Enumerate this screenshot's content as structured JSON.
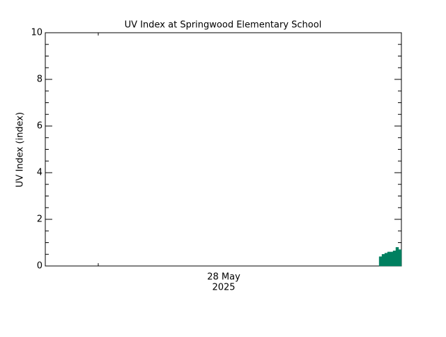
{
  "chart_data": {
    "type": "area",
    "title": "UV Index at Springwood Elementary School",
    "y_label": "UV Index (index)",
    "x_label_lines": [
      "28 May",
      "2025"
    ],
    "color": "#008060",
    "ylim": [
      0,
      10
    ],
    "yticks": [
      0,
      2,
      4,
      6,
      8,
      10
    ],
    "yminor_step": 0.5,
    "values": [
      null,
      null,
      null,
      null,
      null,
      null,
      null,
      null,
      null,
      null,
      null,
      null,
      null,
      null,
      null,
      null,
      null,
      null,
      null,
      null,
      null,
      null,
      null,
      null,
      null,
      null,
      null,
      null,
      null,
      null,
      null,
      null,
      null,
      null,
      null,
      null,
      null,
      null,
      null,
      null,
      null,
      null,
      null,
      null,
      null,
      null,
      null,
      null,
      null,
      null,
      null,
      null,
      null,
      null,
      null,
      null,
      null,
      null,
      null,
      null,
      null,
      null,
      null,
      null,
      null,
      null,
      null,
      null,
      null,
      null,
      null,
      null,
      null,
      null,
      null,
      null,
      null,
      null,
      null,
      null,
      null,
      null,
      null,
      null,
      null,
      null,
      null,
      null,
      null,
      null,
      null,
      null,
      null,
      null,
      null,
      null,
      null,
      null,
      null,
      null,
      null,
      null,
      null,
      null,
      null,
      null,
      null,
      null,
      null,
      null,
      null,
      null,
      null,
      null,
      null,
      null,
      null,
      null,
      null,
      null,
      0.4,
      0.5,
      0.55,
      0.6,
      0.6,
      0.65,
      0.8,
      0.7
    ]
  }
}
